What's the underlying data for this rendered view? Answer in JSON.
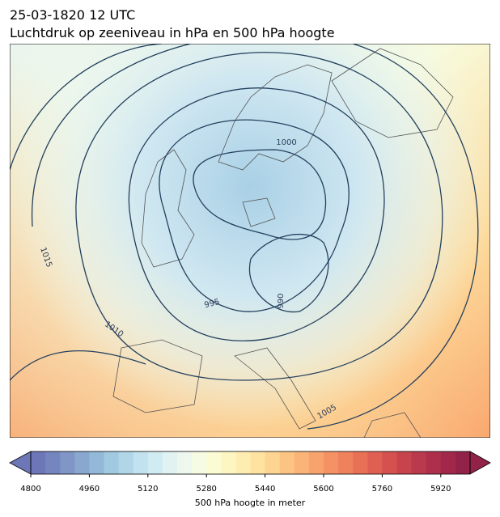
{
  "header": {
    "time": "25-03-1820 12 UTC",
    "title": "Luchtdruk op zeeniveau in hPa en 500 hPa hoogte"
  },
  "contour_labels": [
    "1000",
    "1015",
    "1010",
    "995",
    "990",
    "1005"
  ],
  "colorbar": {
    "label": "500 hPa hoogte in meter",
    "lim": [
      4800,
      6000
    ],
    "ticks": [
      4800,
      4960,
      5120,
      5280,
      5440,
      5600,
      5760,
      5920
    ],
    "colors": [
      "#6d77b8",
      "#7586bf",
      "#7f96c6",
      "#89a7cf",
      "#94b8d8",
      "#a1c9e0",
      "#b0d6e8",
      "#c1e2ee",
      "#d1ebf2",
      "#e1f2f2",
      "#edf7ee",
      "#f6fbe4",
      "#fbfbd4",
      "#fdf6c2",
      "#feedb0",
      "#fee2a0",
      "#fdd491",
      "#fcc483",
      "#fbb477",
      "#f8a36d",
      "#f49265",
      "#ef815d",
      "#e87057",
      "#df6052",
      "#d4514f",
      "#c8444d",
      "#bb394c",
      "#ae2f4b",
      "#a1284a",
      "#932249"
    ]
  }
}
